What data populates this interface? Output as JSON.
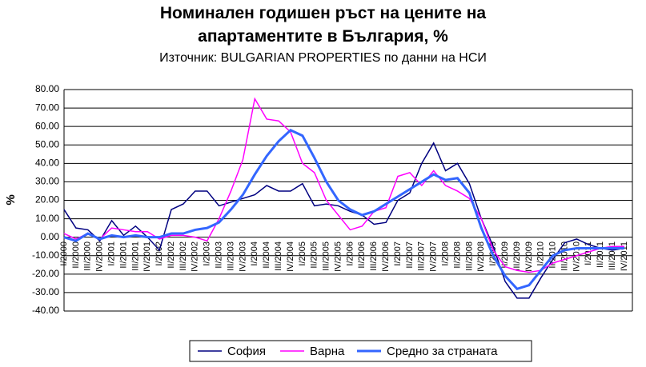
{
  "chart_data": {
    "type": "line",
    "title": "Номинален годишен ръст на цените на апартаментите в България, %",
    "subtitle": "Източник: BULGARIAN PROPERTIES по данни на НСИ",
    "y_label": "%",
    "categories": [
      "I/2000",
      "II/2000",
      "III/2000",
      "IV/2000",
      "I/2001",
      "II/2001",
      "III/2001",
      "IV/2001",
      "I/2002",
      "II/2002",
      "III/2002",
      "IV/2002",
      "I/2003",
      "II/2003",
      "III/2003",
      "IV/2003",
      "I/2004",
      "II/2004",
      "III/2004",
      "IV/2004",
      "I/2005",
      "II/2005",
      "III/2005",
      "IV/2005",
      "I/2006",
      "II/2006",
      "III/2006",
      "IV/2006",
      "I/2007",
      "II/2007",
      "III/2007",
      "IV/2007",
      "I/2008",
      "II/2008",
      "III/2008",
      "IV/2008",
      "I/2009",
      "II/2009",
      "III/2009",
      "IV/2009",
      "I/2010",
      "II/2010",
      "III/2010",
      "IV/2010",
      "I/2011",
      "II/2011",
      "III/2011",
      "IV/2011"
    ],
    "series": [
      {
        "name": "София",
        "color": "#000080",
        "width": 1.5,
        "values": [
          15,
          5,
          4,
          -2,
          9,
          1,
          6,
          0,
          -7,
          15,
          18,
          25,
          25,
          17,
          19,
          21,
          23,
          28,
          25,
          25,
          29,
          17,
          18,
          17,
          14,
          12,
          7,
          8,
          20,
          24,
          40,
          51,
          36,
          40,
          29,
          10,
          -5,
          -24,
          -33,
          -33,
          -22,
          -12,
          -3,
          -1,
          -4,
          -6,
          -7,
          -6
        ]
      },
      {
        "name": "Варна",
        "color": "#ff00ff",
        "width": 1.5,
        "values": [
          2,
          -1,
          2,
          -1,
          5,
          4,
          3,
          3,
          -1,
          1,
          1,
          0,
          -2,
          10,
          25,
          42,
          75,
          64,
          63,
          57,
          40,
          35,
          20,
          12,
          4,
          6,
          14,
          16,
          33,
          35,
          28,
          36,
          28,
          25,
          21,
          10,
          -7,
          -16,
          -18,
          -19,
          -18,
          -14,
          -12,
          -10,
          -8,
          -6,
          -5,
          -5
        ]
      },
      {
        "name": "Средно за страната",
        "color": "#3366ff",
        "width": 3,
        "values": [
          0,
          -2,
          2,
          -1,
          1,
          0,
          1,
          0,
          0,
          2,
          2,
          4,
          5,
          8,
          15,
          23,
          34,
          44,
          52,
          58,
          55,
          43,
          30,
          20,
          15,
          12,
          14,
          18,
          22,
          26,
          30,
          34,
          31,
          32,
          24,
          5,
          -10,
          -21,
          -28,
          -26,
          -18,
          -10,
          -7,
          -6,
          -6,
          -6,
          -6,
          -6
        ]
      }
    ],
    "ylim": [
      -40,
      80
    ],
    "yticks": [
      {
        "value": -40,
        "label": "-40.00"
      },
      {
        "value": -30,
        "label": "-30.00"
      },
      {
        "value": -20,
        "label": "-20.00"
      },
      {
        "value": -10,
        "label": "-10.00"
      },
      {
        "value": 0,
        "label": "0.00"
      },
      {
        "value": 10,
        "label": "10.00"
      },
      {
        "value": 20,
        "label": "20.00"
      },
      {
        "value": 30,
        "label": "30.00"
      },
      {
        "value": 40,
        "label": "40.00"
      },
      {
        "value": 50,
        "label": "50.00"
      },
      {
        "value": 60,
        "label": "60.00"
      },
      {
        "value": 70,
        "label": "70.00"
      },
      {
        "value": 80,
        "label": "80.00"
      }
    ],
    "grid": true
  }
}
